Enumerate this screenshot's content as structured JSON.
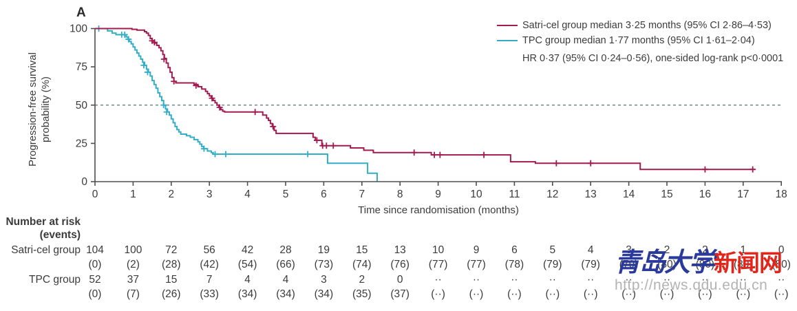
{
  "panel_label": "A",
  "chart_data": {
    "type": "line",
    "subtype": "kaplan-meier-step",
    "title": "",
    "xlabel": "Time since randomisation (months)",
    "ylabel": "Progression-free survival\nprobability (%)",
    "xlim": [
      0,
      18
    ],
    "ylim": [
      0,
      100
    ],
    "x_ticks": [
      0,
      1,
      2,
      3,
      4,
      5,
      6,
      7,
      8,
      9,
      10,
      11,
      12,
      13,
      14,
      15,
      16,
      17,
      18
    ],
    "y_ticks": [
      0,
      25,
      50,
      75,
      100
    ],
    "grid": false,
    "reference_line_y": 50,
    "reference_line_color": "#57707f",
    "legend_position": "top-right",
    "annotation": "HR 0·37 (95% CI 0·24–0·56), one-sided log-rank p<0·0001",
    "legend": [
      {
        "label": "Satri-cel group median 3·25 months (95% CI 2·86–4·53)",
        "color": "#a31a50"
      },
      {
        "label": "TPC group median 1·77 months (95% CI 1·61–2·04)",
        "color": "#31adc8"
      }
    ],
    "series": [
      {
        "name": "TPC group",
        "color": "#31adc8",
        "start": [
          0,
          100
        ],
        "end_x": 7.4,
        "steps": [
          [
            0.33,
            98.5
          ],
          [
            0.45,
            97
          ],
          [
            0.55,
            96
          ],
          [
            0.82,
            94.5
          ],
          [
            0.87,
            93
          ],
          [
            0.9,
            91.5
          ],
          [
            0.95,
            90
          ],
          [
            1.0,
            88
          ],
          [
            1.05,
            86
          ],
          [
            1.1,
            84
          ],
          [
            1.15,
            82
          ],
          [
            1.2,
            80
          ],
          [
            1.25,
            78
          ],
          [
            1.3,
            76
          ],
          [
            1.35,
            73.5
          ],
          [
            1.4,
            71.5
          ],
          [
            1.45,
            69
          ],
          [
            1.5,
            66
          ],
          [
            1.55,
            63.5
          ],
          [
            1.6,
            61
          ],
          [
            1.65,
            58
          ],
          [
            1.7,
            55.5
          ],
          [
            1.75,
            53
          ],
          [
            1.8,
            50
          ],
          [
            1.85,
            47.5
          ],
          [
            1.9,
            45.5
          ],
          [
            1.95,
            43.5
          ],
          [
            2.0,
            41
          ],
          [
            2.05,
            38.5
          ],
          [
            2.1,
            36
          ],
          [
            2.15,
            34
          ],
          [
            2.2,
            32.5
          ],
          [
            2.25,
            31
          ],
          [
            2.4,
            30
          ],
          [
            2.5,
            29
          ],
          [
            2.6,
            27.5
          ],
          [
            2.7,
            26
          ],
          [
            2.75,
            24.5
          ],
          [
            2.8,
            23
          ],
          [
            2.85,
            21.5
          ],
          [
            2.95,
            20
          ],
          [
            3.05,
            19
          ],
          [
            3.1,
            18
          ],
          [
            6.1,
            12
          ],
          [
            7.15,
            5.5
          ],
          [
            7.4,
            0
          ]
        ],
        "censors": [
          [
            0.1,
            100
          ],
          [
            0.7,
            96
          ],
          [
            0.78,
            96
          ],
          [
            0.88,
            93
          ],
          [
            1.28,
            76
          ],
          [
            1.38,
            71.5
          ],
          [
            1.8,
            50
          ],
          [
            1.88,
            45.5
          ],
          [
            2.86,
            21.5
          ],
          [
            3.15,
            18
          ],
          [
            3.43,
            18
          ],
          [
            5.58,
            18
          ]
        ]
      },
      {
        "name": "Satri-cel group",
        "color": "#a31a50",
        "start": [
          0,
          100
        ],
        "end_x": 17.3,
        "steps": [
          [
            0.97,
            99.5
          ],
          [
            1.1,
            99
          ],
          [
            1.3,
            98
          ],
          [
            1.35,
            97
          ],
          [
            1.4,
            95.5
          ],
          [
            1.45,
            93.5
          ],
          [
            1.5,
            92
          ],
          [
            1.55,
            90.5
          ],
          [
            1.62,
            89
          ],
          [
            1.68,
            87.5
          ],
          [
            1.73,
            85.5
          ],
          [
            1.78,
            83
          ],
          [
            1.82,
            80.5
          ],
          [
            1.87,
            77.5
          ],
          [
            1.92,
            74.5
          ],
          [
            1.97,
            71.5
          ],
          [
            2.02,
            68
          ],
          [
            2.07,
            65.5
          ],
          [
            2.12,
            64.5
          ],
          [
            2.6,
            63.5
          ],
          [
            2.7,
            62
          ],
          [
            2.8,
            60.5
          ],
          [
            2.9,
            59
          ],
          [
            2.95,
            57.5
          ],
          [
            3.0,
            56
          ],
          [
            3.05,
            54.5
          ],
          [
            3.1,
            53
          ],
          [
            3.15,
            51.5
          ],
          [
            3.2,
            50
          ],
          [
            3.25,
            48.5
          ],
          [
            3.3,
            47
          ],
          [
            3.35,
            46
          ],
          [
            3.4,
            45.5
          ],
          [
            4.4,
            43.5
          ],
          [
            4.5,
            41.5
          ],
          [
            4.55,
            40
          ],
          [
            4.6,
            38
          ],
          [
            4.65,
            36
          ],
          [
            4.7,
            33.5
          ],
          [
            4.75,
            31.5
          ],
          [
            5.72,
            29
          ],
          [
            5.78,
            27
          ],
          [
            5.95,
            23.5
          ],
          [
            6.7,
            22
          ],
          [
            7.05,
            20.5
          ],
          [
            7.3,
            19
          ],
          [
            8.82,
            17.5
          ],
          [
            10.9,
            13
          ],
          [
            11.55,
            12
          ],
          [
            14.3,
            8
          ]
        ],
        "censors": [
          [
            1.5,
            92
          ],
          [
            1.56,
            91
          ],
          [
            1.81,
            80
          ],
          [
            2.07,
            65.5
          ],
          [
            2.65,
            62.75
          ],
          [
            3.07,
            54.5
          ],
          [
            3.27,
            48.5
          ],
          [
            4.2,
            45.5
          ],
          [
            4.67,
            36
          ],
          [
            5.82,
            27
          ],
          [
            5.97,
            23.5
          ],
          [
            6.07,
            23.5
          ],
          [
            6.25,
            23.5
          ],
          [
            8.37,
            19
          ],
          [
            8.9,
            17.5
          ],
          [
            9.05,
            17.5
          ],
          [
            10.2,
            17.5
          ],
          [
            12.1,
            12
          ],
          [
            13.0,
            12
          ],
          [
            16.0,
            8
          ],
          [
            17.25,
            8
          ]
        ]
      }
    ]
  },
  "risk_table": {
    "header_line1": "Number at risk",
    "header_line2": "(events)",
    "rows": [
      {
        "label": "Satri-cel group",
        "n": [
          "104",
          "100",
          "72",
          "56",
          "42",
          "28",
          "19",
          "15",
          "13",
          "10",
          "9",
          "6",
          "5",
          "4",
          "3",
          "2",
          "2",
          "1",
          "0"
        ],
        "events": [
          "(0)",
          "(2)",
          "(28)",
          "(42)",
          "(54)",
          "(66)",
          "(73)",
          "(74)",
          "(76)",
          "(77)",
          "(77)",
          "(78)",
          "(79)",
          "(79)",
          "(79)",
          "(80)",
          "(80)",
          "(80)",
          "(80)"
        ]
      },
      {
        "label": "TPC group",
        "n": [
          "52",
          "37",
          "15",
          "7",
          "4",
          "4",
          "3",
          "2",
          "0",
          "··",
          "··",
          "··",
          "··",
          "··",
          "··",
          "··",
          "··",
          "··",
          "··"
        ],
        "events": [
          "(0)",
          "(7)",
          "(26)",
          "(33)",
          "(34)",
          "(34)",
          "(34)",
          "(35)",
          "(37)",
          "(··)",
          "(··)",
          "(··)",
          "(··)",
          "(··)",
          "(··)",
          "(··)",
          "(··)",
          "(··)",
          "(··)"
        ]
      }
    ]
  },
  "watermark": {
    "cn_blue": "青岛大学",
    "cn_red": "新闻网",
    "url": "http://news.qdu.edu.cn"
  }
}
